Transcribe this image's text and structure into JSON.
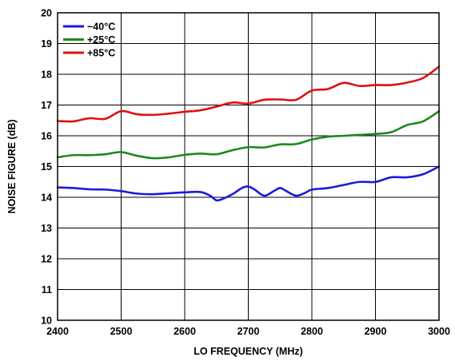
{
  "chart_data": {
    "type": "line",
    "title": "",
    "xlabel": "LO FREQUENCY (MHz)",
    "ylabel": "NOISE FIGURE (dB)",
    "xlim": [
      2400,
      3000
    ],
    "ylim": [
      10,
      20
    ],
    "xticks": [
      "2400",
      "2500",
      "2600",
      "2700",
      "2800",
      "2900",
      "3000"
    ],
    "yticks": [
      "10",
      "11",
      "12",
      "13",
      "14",
      "15",
      "16",
      "17",
      "18",
      "19",
      "20"
    ],
    "grid": true,
    "legend_position": "top-left",
    "series": [
      {
        "name": "−40°C",
        "color": "#1a1adc",
        "x": [
          2400,
          2425,
          2450,
          2475,
          2500,
          2525,
          2550,
          2575,
          2600,
          2625,
          2640,
          2650,
          2660,
          2675,
          2690,
          2700,
          2710,
          2725,
          2740,
          2750,
          2760,
          2775,
          2790,
          2800,
          2825,
          2850,
          2875,
          2900,
          2925,
          2950,
          2975,
          3000
        ],
        "values": [
          14.32,
          14.3,
          14.26,
          14.25,
          14.2,
          14.12,
          14.1,
          14.13,
          14.16,
          14.17,
          14.05,
          13.9,
          13.95,
          14.1,
          14.3,
          14.35,
          14.25,
          14.05,
          14.2,
          14.3,
          14.2,
          14.05,
          14.15,
          14.25,
          14.3,
          14.4,
          14.5,
          14.5,
          14.65,
          14.65,
          14.75,
          15.0
        ]
      },
      {
        "name": "+25°C",
        "color": "#1a8a1a",
        "x": [
          2400,
          2425,
          2450,
          2475,
          2500,
          2525,
          2550,
          2575,
          2600,
          2625,
          2650,
          2675,
          2700,
          2725,
          2750,
          2775,
          2800,
          2825,
          2850,
          2875,
          2900,
          2925,
          2950,
          2975,
          3000
        ],
        "values": [
          15.3,
          15.37,
          15.37,
          15.4,
          15.47,
          15.35,
          15.27,
          15.3,
          15.38,
          15.42,
          15.4,
          15.53,
          15.63,
          15.62,
          15.72,
          15.73,
          15.88,
          15.97,
          16.0,
          16.03,
          16.06,
          16.12,
          16.35,
          16.47,
          16.8
        ]
      },
      {
        "name": "+85°C",
        "color": "#e01010",
        "x": [
          2400,
          2425,
          2450,
          2475,
          2500,
          2525,
          2550,
          2575,
          2600,
          2625,
          2650,
          2675,
          2700,
          2725,
          2750,
          2775,
          2800,
          2825,
          2850,
          2875,
          2900,
          2925,
          2950,
          2975,
          3000
        ],
        "values": [
          16.48,
          16.47,
          16.57,
          16.55,
          16.8,
          16.7,
          16.68,
          16.72,
          16.78,
          16.83,
          16.95,
          17.08,
          17.05,
          17.17,
          17.18,
          17.17,
          17.47,
          17.52,
          17.72,
          17.62,
          17.65,
          17.65,
          17.73,
          17.88,
          18.25
        ]
      }
    ]
  }
}
